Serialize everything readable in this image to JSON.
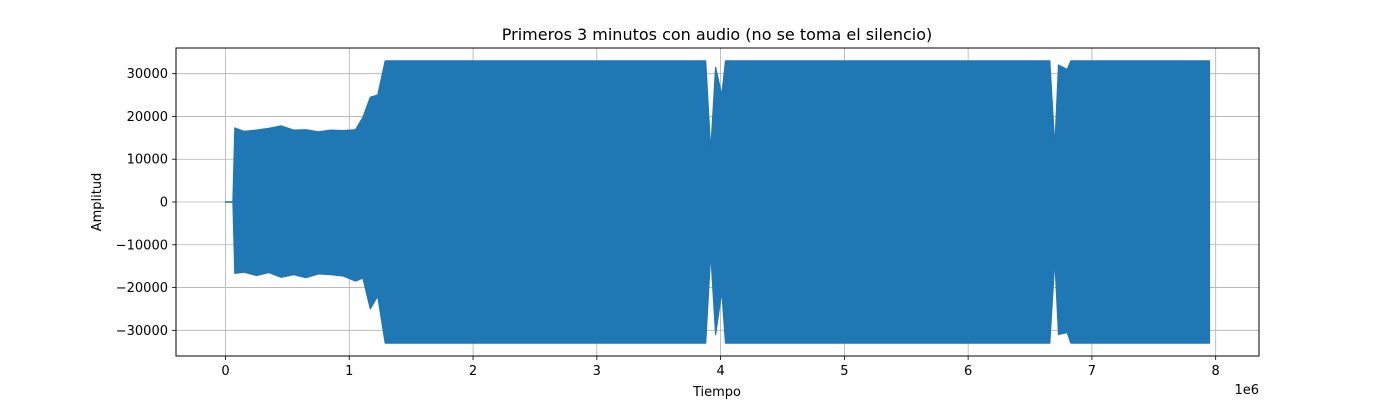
{
  "chart_data": {
    "type": "line",
    "title": "Primeros 3 minutos con audio (no se toma el silencio)",
    "xlabel": "Tiempo",
    "ylabel": "Amplitud",
    "x_offset_label": "1e6",
    "xlim": [
      -400000,
      8350000
    ],
    "ylim": [
      -36000,
      36000
    ],
    "xticks": [
      0,
      1000000,
      2000000,
      3000000,
      4000000,
      5000000,
      6000000,
      7000000,
      8000000
    ],
    "xtick_labels": [
      "0",
      "1",
      "2",
      "3",
      "4",
      "5",
      "6",
      "7",
      "8"
    ],
    "yticks": [
      -30000,
      -20000,
      -10000,
      0,
      10000,
      20000,
      30000
    ],
    "ytick_labels": [
      "−30000",
      "−20000",
      "−10000",
      "0",
      "10000",
      "20000",
      "30000"
    ],
    "grid": true,
    "series": [
      {
        "color": "#1f77b4",
        "envelope": [
          {
            "x": 0,
            "max": 0,
            "min": 0
          },
          {
            "x": 60000,
            "max": 0,
            "min": 0
          },
          {
            "x": 75000,
            "max": 17300,
            "min": -16700
          },
          {
            "x": 150000,
            "max": 16500,
            "min": -16400
          },
          {
            "x": 250000,
            "max": 16800,
            "min": -17200
          },
          {
            "x": 350000,
            "max": 17200,
            "min": -16500
          },
          {
            "x": 450000,
            "max": 17800,
            "min": -17600
          },
          {
            "x": 550000,
            "max": 16800,
            "min": -17000
          },
          {
            "x": 650000,
            "max": 16900,
            "min": -17700
          },
          {
            "x": 750000,
            "max": 16400,
            "min": -16800
          },
          {
            "x": 850000,
            "max": 16800,
            "min": -17000
          },
          {
            "x": 950000,
            "max": 16700,
            "min": -17300
          },
          {
            "x": 1050000,
            "max": 16900,
            "min": -18500
          },
          {
            "x": 1110000,
            "max": 19800,
            "min": -17800
          },
          {
            "x": 1170000,
            "max": 24500,
            "min": -25000
          },
          {
            "x": 1230000,
            "max": 25000,
            "min": -22000
          },
          {
            "x": 1290000,
            "max": 33000,
            "min": -33000
          },
          {
            "x": 3880000,
            "max": 33000,
            "min": -33000
          },
          {
            "x": 3920000,
            "max": 12000,
            "min": -12000
          },
          {
            "x": 3960000,
            "max": 31500,
            "min": -31000
          },
          {
            "x": 4010000,
            "max": 25000,
            "min": -21000
          },
          {
            "x": 4040000,
            "max": 33000,
            "min": -33000
          },
          {
            "x": 6660000,
            "max": 33000,
            "min": -33000
          },
          {
            "x": 6700000,
            "max": 13000,
            "min": -13500
          },
          {
            "x": 6730000,
            "max": 32000,
            "min": -31000
          },
          {
            "x": 6800000,
            "max": 31000,
            "min": -30500
          },
          {
            "x": 6830000,
            "max": 33000,
            "min": -33000
          },
          {
            "x": 7950000,
            "max": 33000,
            "min": -33000
          }
        ]
      }
    ]
  }
}
